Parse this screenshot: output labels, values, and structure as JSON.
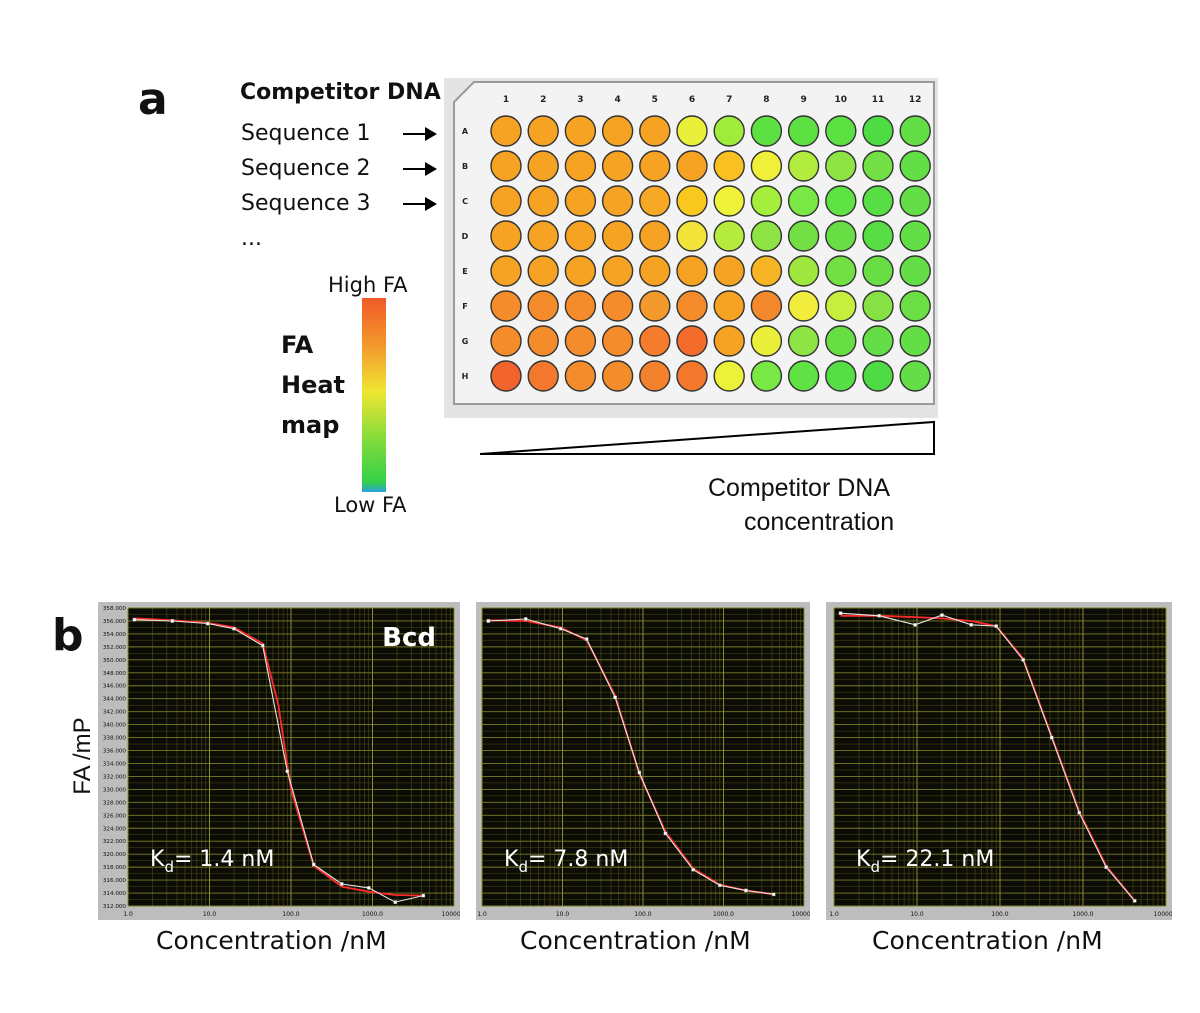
{
  "panel_a": {
    "label": "a",
    "competitor_heading": "Competitor DNA",
    "sequences": [
      "Sequence 1",
      "Sequence 2",
      "Sequence 3",
      "..."
    ],
    "columns": [
      "1",
      "2",
      "3",
      "4",
      "5",
      "6",
      "7",
      "8",
      "9",
      "10",
      "11",
      "12"
    ],
    "rows": [
      "A",
      "B",
      "C",
      "D",
      "E",
      "F",
      "G",
      "H"
    ],
    "well_colors": [
      [
        "#f6a323",
        "#f6a323",
        "#f6a323",
        "#f6a323",
        "#f6a323",
        "#eaf03a",
        "#a0ec3a",
        "#5de042",
        "#5de042",
        "#5de042",
        "#4ddc44",
        "#63de46"
      ],
      [
        "#f6a323",
        "#f6a323",
        "#f6a323",
        "#f6a323",
        "#f6a323",
        "#f6a323",
        "#f8c020",
        "#f0ef3a",
        "#b2ec3e",
        "#8ee444",
        "#72e044",
        "#63de46"
      ],
      [
        "#f6a323",
        "#f6a323",
        "#f6a323",
        "#f6a323",
        "#f7a824",
        "#f8c81e",
        "#eef23a",
        "#a6ee3c",
        "#7ae844",
        "#5ee244",
        "#56de44",
        "#63de46"
      ],
      [
        "#f6a323",
        "#f6a323",
        "#f6a323",
        "#f6a323",
        "#f6a323",
        "#f4e43a",
        "#b5ec3e",
        "#8ee444",
        "#72e044",
        "#66de44",
        "#56de44",
        "#63de46"
      ],
      [
        "#f6a323",
        "#f6a323",
        "#f6a323",
        "#f6a323",
        "#f6a323",
        "#f6a323",
        "#f6a323",
        "#f7b424",
        "#9fe63e",
        "#72e044",
        "#66de44",
        "#63de46"
      ],
      [
        "#f48c2c",
        "#f48c2c",
        "#f48c2c",
        "#f48c2c",
        "#f49a2c",
        "#f48c2c",
        "#f6a323",
        "#f4882c",
        "#f2ec3c",
        "#c6ee3e",
        "#86e244",
        "#6cde46"
      ],
      [
        "#f48c2c",
        "#f48c2c",
        "#f48c2c",
        "#f48c2c",
        "#f47c2c",
        "#f46c2c",
        "#f6a323",
        "#eaf03a",
        "#8ee444",
        "#66de44",
        "#63de46",
        "#63de46"
      ],
      [
        "#f2642e",
        "#f4782c",
        "#f48c2c",
        "#f48c2c",
        "#f4822c",
        "#f4782c",
        "#ecf23a",
        "#7ae844",
        "#5ee244",
        "#56de44",
        "#4ddc44",
        "#63de46"
      ]
    ],
    "heatmap_high": "High FA",
    "heatmap_low": "Low FA",
    "heatmap_title": [
      "FA",
      "Heat",
      "map"
    ],
    "gradient_label_line1": "Competitor DNA",
    "gradient_label_line2": "concentration"
  },
  "panel_b": {
    "label": "b",
    "ylabel": "FA /mP",
    "xlabel": "Concentration /nM"
  },
  "chart_data": [
    {
      "type": "line",
      "title": "Bcd",
      "xlabel": "Concentration /nM",
      "ylabel": "FA /mP",
      "x_scale": "log",
      "xlim": [
        1,
        10000
      ],
      "ylim": [
        312,
        358
      ],
      "x_ticks": [
        "1.0",
        "10.0",
        "100.0",
        "1000.0",
        "10000.0"
      ],
      "y_ticks": [
        "312.000",
        "314.000",
        "316.000",
        "318.000",
        "320.000",
        "322.000",
        "324.000",
        "326.000",
        "328.000",
        "330.000",
        "332.000",
        "334.000",
        "336.000",
        "338.000",
        "340.000",
        "342.000",
        "344.000",
        "346.000",
        "348.000",
        "350.000",
        "352.000",
        "354.000",
        "356.000",
        "358.000"
      ],
      "annotation": {
        "prefix": "K",
        "sub": "d",
        "suffix": "= 1.4 nM"
      },
      "grid": true,
      "series": [
        {
          "x": [
            1.2,
            3.5,
            9.5,
            20,
            45,
            90,
            190,
            420,
            900,
            1900,
            4200
          ],
          "y": [
            356.2,
            356.0,
            355.6,
            354.8,
            352.2,
            332.8,
            318.4,
            315.4,
            314.8,
            312.6,
            313.6
          ]
        },
        {
          "x": [
            1.2,
            3.5,
            9.5,
            20,
            45,
            70,
            100,
            190,
            420,
            900,
            1900,
            4200
          ],
          "y": [
            356.4,
            356.1,
            355.7,
            355.0,
            352.5,
            343.0,
            330.0,
            318.2,
            315.0,
            314.2,
            313.7,
            313.6
          ]
        }
      ]
    },
    {
      "type": "line",
      "title": "",
      "xlabel": "Concentration /nM",
      "x_scale": "log",
      "xlim": [
        1,
        10000
      ],
      "ylim": [
        312,
        358
      ],
      "x_ticks": [
        "1.0",
        "10.0",
        "100.0",
        "1000.0",
        "10000.0"
      ],
      "annotation": {
        "prefix": "K",
        "sub": "d",
        "suffix": "= 7.8 nM"
      },
      "grid": true,
      "series": [
        {
          "x": [
            1.2,
            3.5,
            9.5,
            20,
            45,
            90,
            190,
            420,
            900,
            1900,
            4200
          ],
          "y": [
            356.0,
            356.3,
            354.8,
            353.2,
            344.2,
            332.6,
            323.2,
            317.6,
            315.2,
            314.4,
            313.8
          ]
        },
        {
          "x": [
            1.2,
            3.5,
            9.5,
            20,
            45,
            90,
            190,
            420,
            900,
            1900,
            4200
          ],
          "y": [
            356.1,
            356.0,
            355.0,
            353.0,
            344.5,
            332.4,
            323.5,
            317.8,
            315.3,
            314.4,
            313.8
          ]
        }
      ]
    },
    {
      "type": "line",
      "title": "",
      "xlabel": "Concentration /nM",
      "x_scale": "log",
      "xlim": [
        1,
        10000
      ],
      "ylim": [
        312,
        358
      ],
      "x_ticks": [
        "1.0",
        "10.0",
        "100.0",
        "1000.0",
        "10000.0"
      ],
      "annotation": {
        "prefix": "K",
        "sub": "d",
        "suffix": "= 22.1 nM"
      },
      "grid": true,
      "series": [
        {
          "x": [
            1.2,
            3.5,
            9.5,
            20,
            45,
            90,
            190,
            420,
            900,
            1900,
            4200
          ],
          "y": [
            357.2,
            356.8,
            355.4,
            356.9,
            355.4,
            355.2,
            350.0,
            338.0,
            326.4,
            318.0,
            312.8
          ]
        },
        {
          "x": [
            1.2,
            3.5,
            9.5,
            20,
            45,
            90,
            190,
            420,
            900,
            1900,
            4200
          ],
          "y": [
            356.8,
            356.8,
            356.6,
            356.4,
            356.0,
            355.2,
            350.2,
            338.2,
            326.6,
            318.2,
            312.8
          ]
        }
      ]
    }
  ]
}
